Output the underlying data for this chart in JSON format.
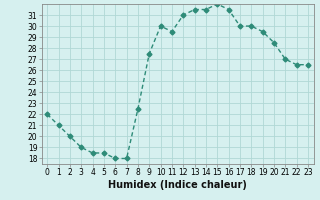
{
  "x": [
    0,
    1,
    2,
    3,
    4,
    5,
    6,
    7,
    8,
    9,
    10,
    11,
    12,
    13,
    14,
    15,
    16,
    17,
    18,
    19,
    20,
    21,
    22,
    23
  ],
  "y": [
    22,
    21,
    20,
    19,
    18.5,
    18.5,
    18,
    18,
    22.5,
    27.5,
    30,
    29.5,
    31,
    31.5,
    31.5,
    32,
    31.5,
    30,
    30,
    29.5,
    28.5,
    27,
    26.5,
    26.5
  ],
  "line_color": "#2e8b78",
  "marker": "D",
  "marker_size": 2.5,
  "bg_color": "#d6f0ef",
  "grid_color": "#b0d8d5",
  "xlabel": "Humidex (Indice chaleur)",
  "xlim": [
    -0.5,
    23.5
  ],
  "ylim": [
    17.5,
    32.0
  ],
  "yticks": [
    18,
    19,
    20,
    21,
    22,
    23,
    24,
    25,
    26,
    27,
    28,
    29,
    30,
    31
  ],
  "xticks": [
    0,
    1,
    2,
    3,
    4,
    5,
    6,
    7,
    8,
    9,
    10,
    11,
    12,
    13,
    14,
    15,
    16,
    17,
    18,
    19,
    20,
    21,
    22,
    23
  ],
  "tick_fontsize": 5.5,
  "xlabel_fontsize": 7,
  "line_width": 1.0
}
